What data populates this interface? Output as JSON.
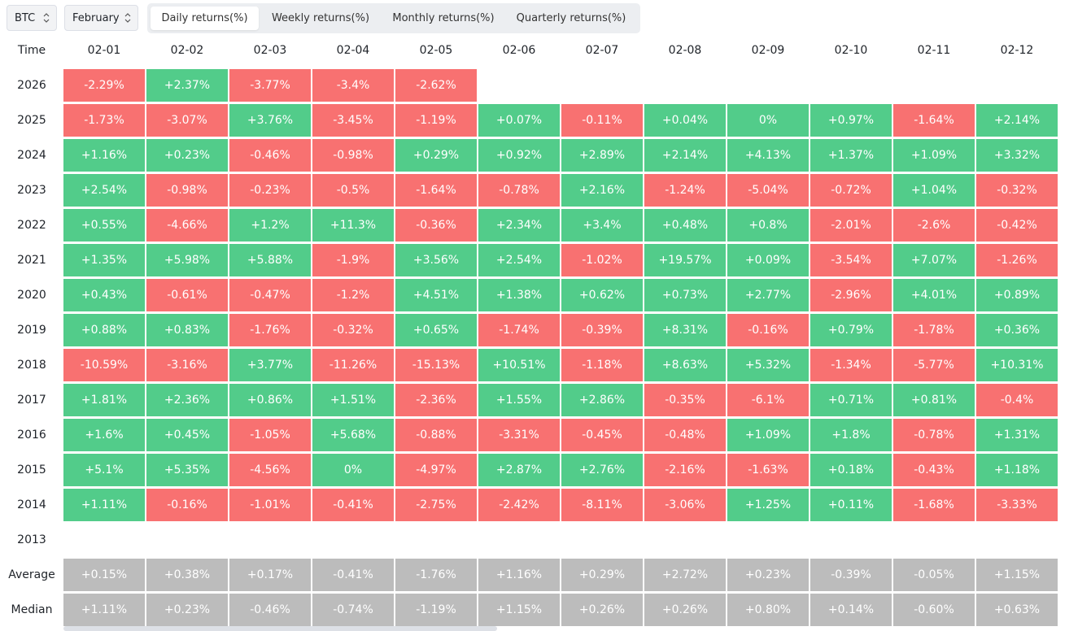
{
  "controls": {
    "asset": "BTC",
    "month": "February"
  },
  "tabs": [
    "Daily returns(%)",
    "Weekly returns(%)",
    "Monthly returns(%)",
    "Quarterly returns(%)"
  ],
  "active_tab": 0,
  "table": {
    "corner": "Time",
    "columns": [
      "02-01",
      "02-02",
      "02-03",
      "02-04",
      "02-05",
      "02-06",
      "02-07",
      "02-08",
      "02-09",
      "02-10",
      "02-11",
      "02-12"
    ],
    "rows": [
      {
        "label": "2026",
        "cells": [
          "-2.29%",
          "+2.37%",
          "-3.77%",
          "-3.4%",
          "-2.62%"
        ]
      },
      {
        "label": "2025",
        "cells": [
          "-1.73%",
          "-3.07%",
          "+3.76%",
          "-3.45%",
          "-1.19%",
          "+0.07%",
          "-0.11%",
          "+0.04%",
          "0%",
          "+0.97%",
          "-1.64%",
          "+2.14%"
        ]
      },
      {
        "label": "2024",
        "cells": [
          "+1.16%",
          "+0.23%",
          "-0.46%",
          "-0.98%",
          "+0.29%",
          "+0.92%",
          "+2.89%",
          "+2.14%",
          "+4.13%",
          "+1.37%",
          "+1.09%",
          "+3.32%"
        ]
      },
      {
        "label": "2023",
        "cells": [
          "+2.54%",
          "-0.98%",
          "-0.23%",
          "-0.5%",
          "-1.64%",
          "-0.78%",
          "+2.16%",
          "-1.24%",
          "-5.04%",
          "-0.72%",
          "+1.04%",
          "-0.32%"
        ]
      },
      {
        "label": "2022",
        "cells": [
          "+0.55%",
          "-4.66%",
          "+1.2%",
          "+11.3%",
          "-0.36%",
          "+2.34%",
          "+3.4%",
          "+0.48%",
          "+0.8%",
          "-2.01%",
          "-2.6%",
          "-0.42%"
        ]
      },
      {
        "label": "2021",
        "cells": [
          "+1.35%",
          "+5.98%",
          "+5.88%",
          "-1.9%",
          "+3.56%",
          "+2.54%",
          "-1.02%",
          "+19.57%",
          "+0.09%",
          "-3.54%",
          "+7.07%",
          "-1.26%"
        ]
      },
      {
        "label": "2020",
        "cells": [
          "+0.43%",
          "-0.61%",
          "-0.47%",
          "-1.2%",
          "+4.51%",
          "+1.38%",
          "+0.62%",
          "+0.73%",
          "+2.77%",
          "-2.96%",
          "+4.01%",
          "+0.89%"
        ]
      },
      {
        "label": "2019",
        "cells": [
          "+0.88%",
          "+0.83%",
          "-1.76%",
          "-0.32%",
          "+0.65%",
          "-1.74%",
          "-0.39%",
          "+8.31%",
          "-0.16%",
          "+0.79%",
          "-1.78%",
          "+0.36%"
        ]
      },
      {
        "label": "2018",
        "cells": [
          "-10.59%",
          "-3.16%",
          "+3.77%",
          "-11.26%",
          "-15.13%",
          "+10.51%",
          "-1.18%",
          "+8.63%",
          "+5.32%",
          "-1.34%",
          "-5.77%",
          "+10.31%"
        ]
      },
      {
        "label": "2017",
        "cells": [
          "+1.81%",
          "+2.36%",
          "+0.86%",
          "+1.51%",
          "-2.36%",
          "+1.55%",
          "+2.86%",
          "-0.35%",
          "-6.1%",
          "+0.71%",
          "+0.81%",
          "-0.4%"
        ]
      },
      {
        "label": "2016",
        "cells": [
          "+1.6%",
          "+0.45%",
          "-1.05%",
          "+5.68%",
          "-0.88%",
          "-3.31%",
          "-0.45%",
          "-0.48%",
          "+1.09%",
          "+1.8%",
          "-0.78%",
          "+1.31%"
        ]
      },
      {
        "label": "2015",
        "cells": [
          "+5.1%",
          "+5.35%",
          "-4.56%",
          "0%",
          "-4.97%",
          "+2.87%",
          "+2.76%",
          "-2.16%",
          "-1.63%",
          "+0.18%",
          "-0.43%",
          "+1.18%"
        ]
      },
      {
        "label": "2014",
        "cells": [
          "+1.11%",
          "-0.16%",
          "-1.01%",
          "-0.41%",
          "-2.75%",
          "-2.42%",
          "-8.11%",
          "-3.06%",
          "+1.25%",
          "+0.11%",
          "-1.68%",
          "-3.33%"
        ]
      },
      {
        "label": "2013",
        "cells": []
      }
    ],
    "summary": [
      {
        "label": "Average",
        "cells": [
          "+0.15%",
          "+0.38%",
          "+0.17%",
          "-0.41%",
          "-1.76%",
          "+1.16%",
          "+0.29%",
          "+2.72%",
          "+0.23%",
          "-0.39%",
          "-0.05%",
          "+1.15%"
        ]
      },
      {
        "label": "Median",
        "cells": [
          "+1.11%",
          "+0.23%",
          "-0.46%",
          "-0.74%",
          "-1.19%",
          "+1.15%",
          "+0.26%",
          "+0.26%",
          "+0.80%",
          "+0.14%",
          "-0.60%",
          "+0.63%"
        ]
      }
    ]
  }
}
